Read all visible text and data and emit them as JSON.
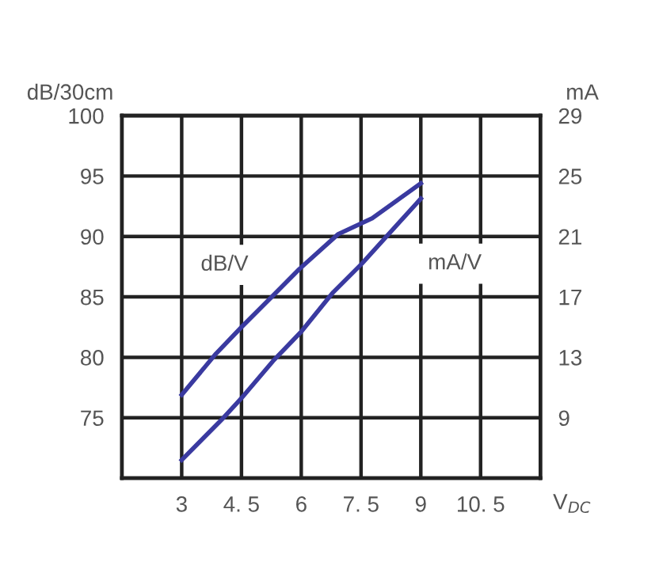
{
  "chart_data": {
    "type": "line",
    "xlabel": "V$_{DC}$",
    "ylabel": "dB/30cm",
    "y2label": "mA",
    "xlim": [
      1.5,
      12
    ],
    "xticks": [
      3,
      {
        "value": 4.5,
        "label": "4. 5"
      },
      6,
      {
        "value": 7.5,
        "label": "7. 5"
      },
      9,
      {
        "value": 10.5,
        "label": "10. 5"
      }
    ],
    "ylim": [
      70,
      100
    ],
    "yticks": [
      75,
      80,
      85,
      90,
      95,
      100
    ],
    "y2lim": [
      5,
      29
    ],
    "y2ticks": [
      9,
      13,
      17,
      21,
      25,
      29
    ],
    "grid": true,
    "legend": false,
    "marker": "none",
    "line_style": "solid",
    "series": [
      {
        "name": "dB/V",
        "color": "#3a3aa0",
        "x": [
          3,
          3.86,
          4.5,
          5.29,
          5.95,
          6.93,
          7.78,
          9
        ],
        "values": [
          76.9,
          80.3,
          82.5,
          85.1,
          87.3,
          90.2,
          91.5,
          94.4
        ]
      },
      {
        "name": "mA/V",
        "color": "#3a3aa0",
        "axis": "y2",
        "x": [
          3,
          4.05,
          4.5,
          5.29,
          6,
          6.8,
          7.52,
          9
        ],
        "values": [
          6.2,
          9,
          10.3,
          12.75,
          14.7,
          17.3,
          19.2,
          23.5
        ]
      }
    ]
  }
}
